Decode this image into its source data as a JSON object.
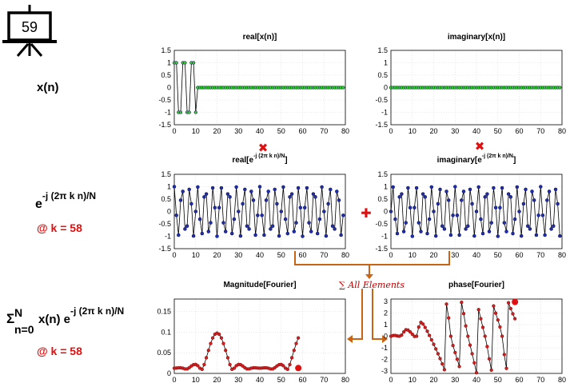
{
  "slide_number": "59",
  "labels": {
    "xn": "x(n)",
    "kernel_base": "e",
    "kernel_exp": "-j (2π k n)/N",
    "k_label": "@ k = 58",
    "sum_sigma": "Σ",
    "sum_upper": "N",
    "sum_lower": "n=0",
    "sum_body": "x(n) e",
    "sum_exp": "-j (2π k n)/N",
    "sum_k_label": "@ k = 58",
    "all_elements": "∑ All Elements",
    "multiply_symbol": "✖",
    "plus_symbol": "✚"
  },
  "colors": {
    "green": "#33cc33",
    "blue": "#1f2fb0",
    "darkred": "#8b0000",
    "red_fill": "#cc2222",
    "accent_red": "#e01010",
    "arrow_orange": "#c86414",
    "line": "#000000"
  },
  "chart_data": [
    {
      "id": "real-x",
      "type": "line",
      "title": "real[x(n)]",
      "title_exp": "",
      "title_suffix": "",
      "xlim": [
        0,
        80
      ],
      "ylim": [
        -1.5,
        1.5
      ],
      "xticks": [
        0,
        10,
        20,
        30,
        40,
        50,
        60,
        70,
        80
      ],
      "yticks": [
        1.5,
        1,
        0.5,
        0,
        -0.5,
        -1,
        -1.5
      ],
      "ytick_labels": [
        "1.5",
        "1",
        "0.5",
        "0",
        "-0.5",
        "-1",
        "-1.5"
      ],
      "series_kind": "square",
      "marker": "green",
      "highlight": null
    },
    {
      "id": "imag-x",
      "type": "line",
      "title": "imaginary[x(n)]",
      "title_exp": "",
      "title_suffix": "",
      "xlim": [
        0,
        80
      ],
      "ylim": [
        -1.5,
        1.5
      ],
      "xticks": [
        0,
        10,
        20,
        30,
        40,
        50,
        60,
        70,
        80
      ],
      "yticks": [
        1.5,
        1,
        0.5,
        0,
        -0.5,
        -1,
        -1.5
      ],
      "ytick_labels": [
        "1.5",
        "1",
        "0.5",
        "0",
        "-0.5",
        "-1",
        "-1.5"
      ],
      "series_kind": "zeros",
      "marker": "green",
      "highlight": null
    },
    {
      "id": "real-kernel",
      "type": "line",
      "title": "real[e",
      "title_exp": "-j (2π k n)/N",
      "title_suffix": "]",
      "xlim": [
        0,
        80
      ],
      "ylim": [
        -1.5,
        1.5
      ],
      "xticks": [
        0,
        10,
        20,
        30,
        40,
        50,
        60,
        70,
        80
      ],
      "yticks": [
        1.5,
        1,
        0.5,
        0,
        -0.5,
        -1,
        -1.5
      ],
      "ytick_labels": [
        "1.5",
        "1",
        "0.5",
        "0",
        "-0.5",
        "-1",
        "-1.5"
      ],
      "series_kind": "cos",
      "k": 58,
      "N": 80,
      "marker": "blue",
      "highlight": null
    },
    {
      "id": "imag-kernel",
      "type": "line",
      "title": "imaginary[e",
      "title_exp": "-j (2π k n)/N",
      "title_suffix": "]",
      "xlim": [
        0,
        80
      ],
      "ylim": [
        -1.5,
        1.5
      ],
      "xticks": [
        0,
        10,
        20,
        30,
        40,
        50,
        60,
        70,
        80
      ],
      "yticks": [
        1.5,
        1,
        0.5,
        0,
        -0.5,
        -1,
        -1.5
      ],
      "ytick_labels": [
        "1.5",
        "1",
        "0.5",
        "0",
        "-0.5",
        "-1",
        "-1.5"
      ],
      "series_kind": "negsin",
      "k": 58,
      "N": 80,
      "marker": "blue",
      "highlight": null
    },
    {
      "id": "magnitude",
      "type": "line",
      "title": "Magnitude[Fourier]",
      "title_exp": "",
      "title_suffix": "",
      "xlim": [
        0,
        80
      ],
      "ylim": [
        0,
        0.18
      ],
      "xticks": [
        0,
        10,
        20,
        30,
        40,
        50,
        60,
        70,
        80
      ],
      "yticks": [
        0.15,
        0.1,
        0.05,
        0
      ],
      "ytick_labels": [
        "0.15",
        "0.1",
        "0.05",
        "0"
      ],
      "series_kind": "magnitude",
      "N": 80,
      "upto": 58,
      "marker": "darkred",
      "highlight": {
        "x": 58,
        "y": 0.013
      }
    },
    {
      "id": "phase",
      "type": "line",
      "title": "phase[Fourier]",
      "title_exp": "",
      "title_suffix": "",
      "xlim": [
        0,
        80
      ],
      "ylim": [
        -3.2,
        3.2
      ],
      "xticks": [
        0,
        10,
        20,
        30,
        40,
        50,
        60,
        70,
        80
      ],
      "yticks": [
        3,
        2,
        1,
        0,
        -1,
        -2,
        -3
      ],
      "ytick_labels": [
        "3",
        "2",
        "1",
        "0",
        "-1",
        "-2",
        "-3"
      ],
      "series_kind": "phase",
      "N": 80,
      "upto": 58,
      "marker": "darkred",
      "highlight": {
        "x": 58,
        "y": 2.95
      }
    }
  ]
}
